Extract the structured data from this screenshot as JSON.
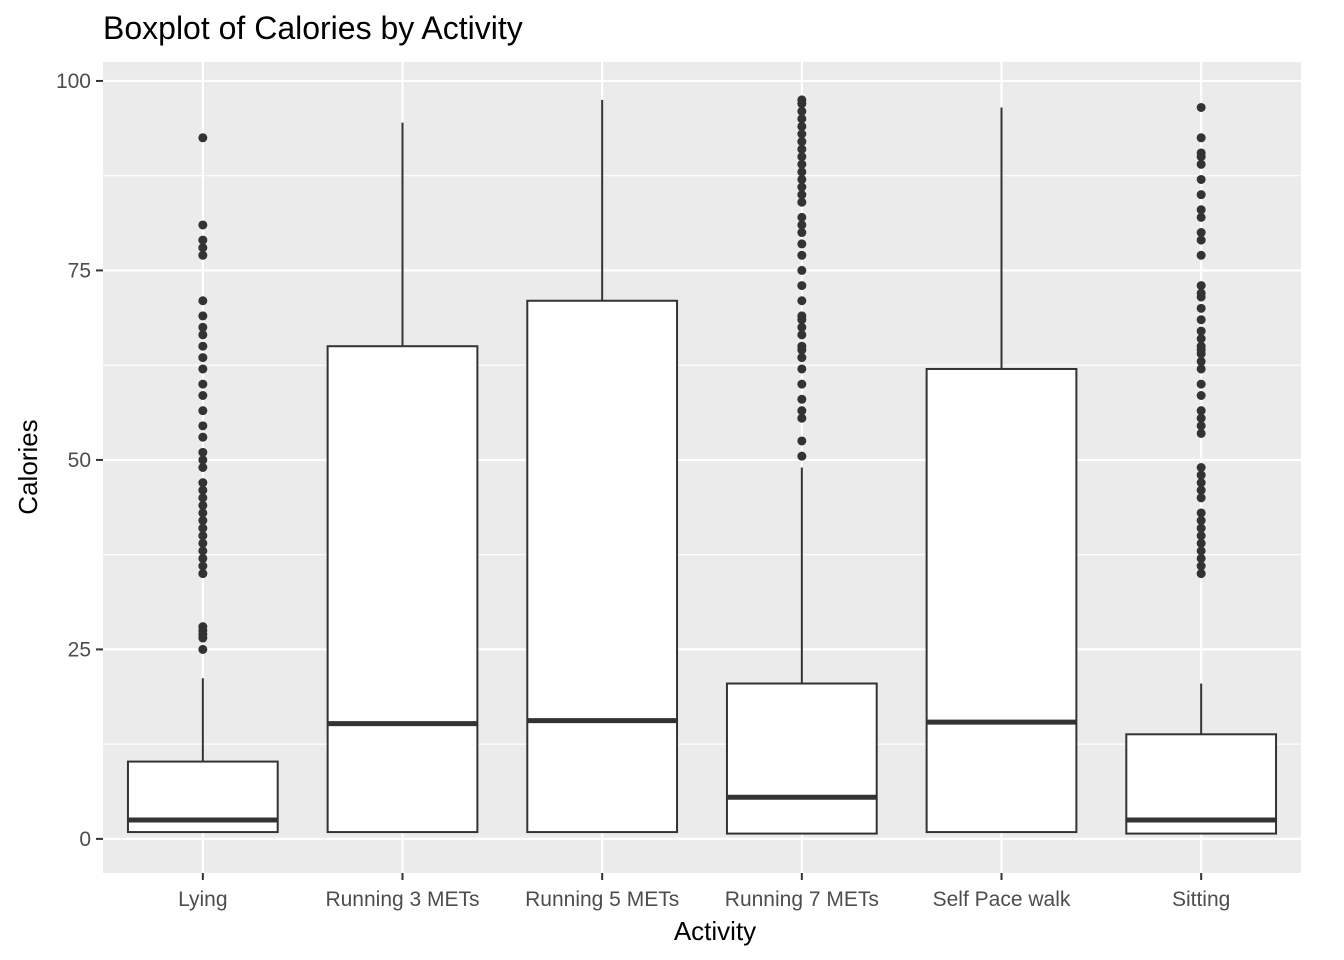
{
  "chart_data": {
    "type": "boxplot",
    "title": "Boxplot of Calories by Activity",
    "xlabel": "Activity",
    "ylabel": "Calories",
    "ylim": [
      -4.5,
      102.5
    ],
    "yticks": [
      0,
      25,
      50,
      75,
      100
    ],
    "grid": true,
    "legend": "none",
    "categories": [
      "Lying",
      "Running 3 METs",
      "Running 5 METs",
      "Running 7 METs",
      "Self Pace walk",
      "Sitting"
    ],
    "boxes": [
      {
        "category": "Lying",
        "min": 0.8,
        "q1": 0.9,
        "median": 2.5,
        "q3": 10.2,
        "max": 21.2,
        "outliers": [
          25,
          26.5,
          27,
          27.5,
          28,
          35,
          36,
          37,
          38,
          39,
          40,
          41,
          42,
          43,
          44,
          45,
          46,
          47,
          49,
          50,
          51,
          53,
          54.5,
          56.5,
          58.5,
          60,
          62,
          63.5,
          65,
          66.5,
          67.5,
          69,
          71,
          77,
          78,
          79,
          81,
          92.5
        ]
      },
      {
        "category": "Running 3 METs",
        "min": 0.8,
        "q1": 0.9,
        "median": 15.2,
        "q3": 65,
        "max": 94.5,
        "outliers": []
      },
      {
        "category": "Running 5 METs",
        "min": 0.8,
        "q1": 0.9,
        "median": 15.6,
        "q3": 71,
        "max": 97.5,
        "outliers": []
      },
      {
        "category": "Running 7 METs",
        "min": 0.6,
        "q1": 0.7,
        "median": 5.5,
        "q3": 20.5,
        "max": 49,
        "outliers": [
          50.5,
          52.5,
          55.5,
          56.5,
          58,
          60,
          62,
          63.5,
          64.5,
          65,
          66.5,
          67.5,
          68.5,
          69,
          71,
          73,
          75,
          77,
          78.5,
          80,
          81,
          82,
          84,
          85,
          86,
          87,
          88,
          89,
          90,
          91,
          92,
          93,
          94,
          95,
          96,
          97,
          97.5
        ]
      },
      {
        "category": "Self Pace walk",
        "min": 0.8,
        "q1": 0.9,
        "median": 15.4,
        "q3": 62,
        "max": 96.5,
        "outliers": []
      },
      {
        "category": "Sitting",
        "min": 0.6,
        "q1": 0.7,
        "median": 2.5,
        "q3": 13.8,
        "max": 20.5,
        "outliers": [
          35,
          36,
          37,
          38,
          39,
          40,
          41,
          42,
          43,
          45,
          46,
          47,
          48,
          49,
          53.5,
          54.5,
          55.5,
          56.5,
          58.5,
          60,
          62,
          63,
          64,
          64.5,
          65,
          66,
          67,
          68.5,
          70,
          71.5,
          72,
          73,
          77,
          79,
          80,
          82,
          83,
          85,
          87,
          89,
          90,
          90.5,
          92.5,
          96.5
        ]
      }
    ]
  }
}
